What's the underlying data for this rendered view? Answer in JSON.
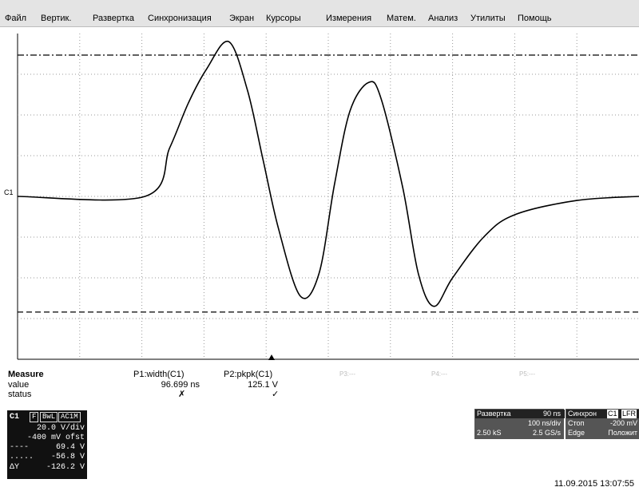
{
  "menu": {
    "items": [
      "Файл",
      "Вертик.",
      "Развертка",
      "Синхронизация",
      "Экран",
      "Курсоры",
      "Измерения",
      "Матем.",
      "Анализ",
      "Утилиты",
      "Помощь"
    ]
  },
  "channel_marker": "C1",
  "measure": {
    "title": "Measure",
    "row_labels": [
      "value",
      "status"
    ],
    "columns": [
      {
        "header": "P1:width(C1)",
        "value": "96.699 ns",
        "status": "✗"
      },
      {
        "header": "P2:pkpk(C1)",
        "value": "125.1 V",
        "status": "✓"
      },
      {
        "header": "P3:---",
        "value": "",
        "status": ""
      },
      {
        "header": "P4:---",
        "value": "",
        "status": ""
      },
      {
        "header": "P5:---",
        "value": "",
        "status": ""
      }
    ]
  },
  "channel_box": {
    "name": "C1",
    "tags": [
      "F",
      "BwL",
      "AC1M"
    ],
    "vdiv": "20.0 V/div",
    "offset": "-400 mV ofst",
    "cursor1": "69.4 V",
    "cursor2": "-56.8 V",
    "delta_label": "ΔY",
    "delta": "-126.2 V"
  },
  "timebase_box": {
    "title": "Развертка",
    "delay": "90 ns",
    "tdiv": "100 ns/div",
    "samples": "2.50 kS",
    "rate": "2.5 GS/s"
  },
  "trigger_box": {
    "title": "Синхрон",
    "source": "C1",
    "coupling": "LFR",
    "mode": "Стоп",
    "level": "-200 mV",
    "type": "Edge",
    "slope": "Положит"
  },
  "datetime": "11.09.2015 13:07:55",
  "colors": {
    "trace": "#000000",
    "grid": "#9a9a9a",
    "menubar": "#e4e4e4"
  },
  "chart_data": {
    "type": "line",
    "title": "",
    "xlabel": "",
    "ylabel": "",
    "xlim": [
      0,
      1000
    ],
    "ylim": [
      -80,
      80
    ],
    "x_unit": "ns",
    "y_unit": "V",
    "grid": true,
    "series": [
      {
        "x": [
          0,
          205,
          245,
          275,
          305,
          340,
          370,
          395,
          420,
          455,
          485,
          510,
          535,
          565,
          585,
          620,
          645,
          670,
          700,
          750,
          800,
          900,
          1000
        ],
        "y": [
          0,
          0,
          24,
          46,
          63,
          76,
          52,
          18,
          -16,
          -49,
          -38,
          6,
          42,
          56,
          48,
          4,
          -38,
          -54,
          -40,
          -20,
          -9,
          -2,
          0
        ]
      }
    ],
    "cursors": [
      {
        "axis": "y",
        "value": 69.4,
        "style": "dash-dot"
      },
      {
        "axis": "y",
        "value": -56.8,
        "style": "dashed"
      }
    ]
  }
}
